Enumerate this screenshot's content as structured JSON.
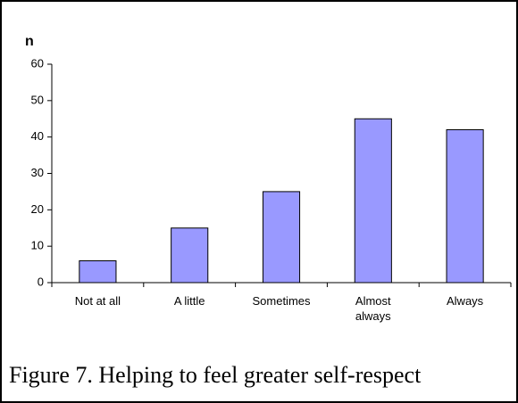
{
  "chart_data": {
    "type": "bar",
    "caption": "Figure 7. Helping to feel greater self-respect",
    "ylabel": "n",
    "categories": [
      "Not at all",
      "A little",
      "Sometimes",
      "Almost always",
      "Always"
    ],
    "values": [
      6,
      15,
      25,
      45,
      42
    ],
    "color": "#9999ff",
    "ylim": [
      0,
      60
    ],
    "yticks": [
      0,
      10,
      20,
      30,
      40,
      50,
      60
    ],
    "grid": false
  }
}
